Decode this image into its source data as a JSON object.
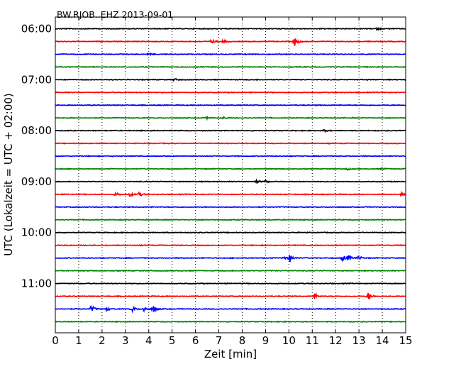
{
  "chart_data": {
    "type": "line",
    "title": "BW.RJOB..EHZ 2013-09-01",
    "xlabel": "Zeit  [min]",
    "ylabel": "UTC (Lokalzeit = UTC + 02:00)",
    "xlim": [
      0,
      15
    ],
    "x_ticks": [
      "0",
      "1",
      "2",
      "3",
      "4",
      "5",
      "6",
      "7",
      "8",
      "9",
      "10",
      "11",
      "12",
      "13",
      "14",
      "15"
    ],
    "y_ticks": [
      "06:00",
      "07:00",
      "08:00",
      "09:00",
      "10:00",
      "11:00"
    ],
    "grid": "vertical dotted lines at each minute",
    "line_minutes": 15,
    "start_time": "06:00",
    "colors": [
      "#000000",
      "#ff0000",
      "#0000ff",
      "#008000"
    ],
    "traces": [
      {
        "start": "06:00",
        "color": "#000000",
        "events": [
          [
            13.8,
            0.25
          ]
        ]
      },
      {
        "start": "06:15",
        "color": "#ff0000",
        "events": [
          [
            6.7,
            0.4
          ],
          [
            7.2,
            0.35
          ],
          [
            10.25,
            0.9
          ]
        ]
      },
      {
        "start": "06:30",
        "color": "#0000ff",
        "events": [
          [
            4.0,
            0.2
          ]
        ]
      },
      {
        "start": "06:45",
        "color": "#008000",
        "events": []
      },
      {
        "start": "07:00",
        "color": "#000000",
        "events": [
          [
            5.1,
            0.25
          ]
        ]
      },
      {
        "start": "07:15",
        "color": "#ff0000",
        "events": []
      },
      {
        "start": "07:30",
        "color": "#0000ff",
        "events": []
      },
      {
        "start": "07:45",
        "color": "#008000",
        "events": [
          [
            6.5,
            0.2
          ],
          [
            7.2,
            0.2
          ]
        ]
      },
      {
        "start": "08:00",
        "color": "#000000",
        "events": [
          [
            11.5,
            0.2
          ]
        ]
      },
      {
        "start": "08:15",
        "color": "#ff0000",
        "events": []
      },
      {
        "start": "08:30",
        "color": "#0000ff",
        "events": []
      },
      {
        "start": "08:45",
        "color": "#008000",
        "events": [
          [
            12.5,
            0.2
          ],
          [
            14.0,
            0.2
          ]
        ]
      },
      {
        "start": "09:00",
        "color": "#000000",
        "events": [
          [
            8.6,
            0.3
          ],
          [
            9.0,
            0.25
          ]
        ]
      },
      {
        "start": "09:15",
        "color": "#ff0000",
        "events": [
          [
            2.6,
            0.35
          ],
          [
            3.2,
            0.4
          ],
          [
            3.6,
            0.4
          ],
          [
            14.8,
            0.3
          ]
        ]
      },
      {
        "start": "09:30",
        "color": "#0000ff",
        "events": []
      },
      {
        "start": "09:45",
        "color": "#008000",
        "events": []
      },
      {
        "start": "10:00",
        "color": "#000000",
        "events": []
      },
      {
        "start": "10:15",
        "color": "#ff0000",
        "events": []
      },
      {
        "start": "10:30",
        "color": "#0000ff",
        "events": [
          [
            9.8,
            0.4
          ],
          [
            10.05,
            0.7
          ],
          [
            12.3,
            0.5
          ],
          [
            12.55,
            0.5
          ],
          [
            13.0,
            0.4
          ]
        ]
      },
      {
        "start": "10:45",
        "color": "#008000",
        "events": []
      },
      {
        "start": "11:00",
        "color": "#000000",
        "events": []
      },
      {
        "start": "11:15",
        "color": "#ff0000",
        "events": [
          [
            11.1,
            0.6
          ],
          [
            13.4,
            0.7
          ]
        ]
      },
      {
        "start": "11:30",
        "color": "#0000ff",
        "events": [
          [
            1.55,
            0.7
          ],
          [
            2.2,
            0.3
          ],
          [
            3.3,
            0.5
          ],
          [
            3.8,
            0.55
          ],
          [
            4.2,
            0.6
          ]
        ]
      },
      {
        "start": "11:45",
        "color": "#008000",
        "events": []
      }
    ]
  }
}
